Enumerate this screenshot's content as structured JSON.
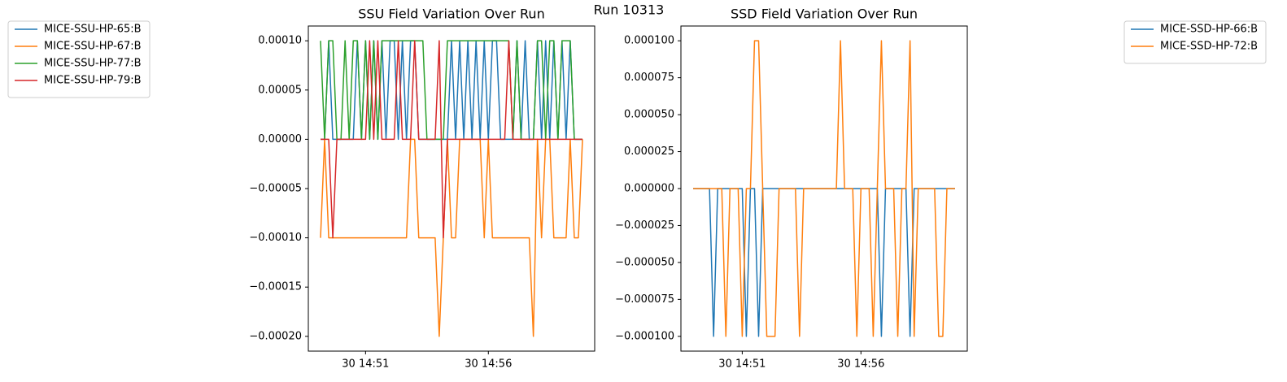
{
  "title": "Run 10313",
  "chart_data": [
    {
      "type": "line",
      "title": "SSU Field Variation Over Run",
      "legend": "outside left",
      "grid": false,
      "categories": [
        null,
        null,
        null,
        null,
        null,
        null,
        null,
        null,
        null,
        null,
        null,
        "30 14:51",
        null,
        null,
        null,
        null,
        null,
        null,
        null,
        null,
        null,
        null,
        null,
        null,
        null,
        null,
        null,
        null,
        null,
        null,
        null,
        null,
        null,
        null,
        null,
        null,
        null,
        null,
        null,
        null,
        null,
        "30 14:56",
        null,
        null,
        null,
        null,
        null,
        null,
        null,
        null,
        null,
        null,
        null,
        null,
        null,
        null,
        null,
        null,
        null,
        null,
        null,
        null,
        null,
        null,
        null
      ],
      "ylim": [
        -0.000215,
        0.000115
      ],
      "yticks": [
        {
          "value": -0.0002,
          "label": "−0.00020"
        },
        {
          "value": -0.00015,
          "label": "−0.00015"
        },
        {
          "value": -0.0001,
          "label": "−0.00010"
        },
        {
          "value": -5e-05,
          "label": "−0.00005"
        },
        {
          "value": 0,
          "label": "0.00000"
        },
        {
          "value": 5e-05,
          "label": "0.00005"
        },
        {
          "value": 0.0001,
          "label": "0.00010"
        }
      ],
      "series": [
        {
          "name": "MICE-SSU-HP-65:B",
          "color": "#1f77b4",
          "values": [
            0,
            0,
            0.0001,
            0,
            0,
            0,
            0,
            0,
            0,
            0.0001,
            0,
            0.0001,
            0,
            0.0001,
            0,
            0.0001,
            0,
            0.0001,
            0.0001,
            0,
            0.0001,
            0,
            0.0001,
            0.0001,
            0,
            0,
            0,
            0,
            0,
            0,
            0,
            0,
            0.0001,
            0,
            0.0001,
            0,
            0.0001,
            0,
            0.0001,
            0,
            0.0001,
            0,
            0.0001,
            0.0001,
            0,
            0,
            0,
            0,
            0.0001,
            0,
            0.0001,
            0,
            0,
            0.0001,
            0,
            0.0001,
            0,
            0.0001,
            0,
            0.0001,
            0,
            0.0001,
            0,
            0,
            0
          ]
        },
        {
          "name": "MICE-SSU-HP-67:B",
          "color": "#ff7f0e",
          "values": [
            -0.0001,
            0,
            -0.0001,
            -0.0001,
            -0.0001,
            -0.0001,
            -0.0001,
            -0.0001,
            -0.0001,
            -0.0001,
            -0.0001,
            -0.0001,
            -0.0001,
            -0.0001,
            -0.0001,
            -0.0001,
            -0.0001,
            -0.0001,
            -0.0001,
            -0.0001,
            -0.0001,
            -0.0001,
            0,
            0,
            -0.0001,
            -0.0001,
            -0.0001,
            -0.0001,
            -0.0001,
            -0.0002,
            -0.0001,
            0,
            -0.0001,
            -0.0001,
            0,
            0,
            0,
            0,
            0,
            0,
            -0.0001,
            0,
            -0.0001,
            -0.0001,
            -0.0001,
            -0.0001,
            -0.0001,
            -0.0001,
            -0.0001,
            -0.0001,
            -0.0001,
            -0.0001,
            -0.0002,
            0,
            -0.0001,
            0,
            0,
            -0.0001,
            -0.0001,
            -0.0001,
            -0.0001,
            0,
            -0.0001,
            -0.0001,
            0
          ]
        },
        {
          "name": "MICE-SSU-HP-77:B",
          "color": "#2ca02c",
          "values": [
            0.0001,
            0,
            0.0001,
            0.0001,
            0,
            0,
            0.0001,
            0,
            0.0001,
            0.0001,
            0,
            0.0001,
            0,
            0.0001,
            0,
            0.0001,
            0.0001,
            0.0001,
            0.0001,
            0.0001,
            0.0001,
            0.0001,
            0.0001,
            0.0001,
            0.0001,
            0.0001,
            0,
            0,
            0,
            0,
            0,
            0.0001,
            0.0001,
            0.0001,
            0.0001,
            0.0001,
            0.0001,
            0.0001,
            0.0001,
            0.0001,
            0.0001,
            0.0001,
            0.0001,
            0.0001,
            0.0001,
            0.0001,
            0.0001,
            0,
            0.0001,
            0,
            0,
            0,
            0,
            0.0001,
            0.0001,
            0,
            0.0001,
            0.0001,
            0,
            0.0001,
            0.0001,
            0.0001,
            0,
            0,
            0
          ]
        },
        {
          "name": "MICE-SSU-HP-79:B",
          "color": "#d62728",
          "values": [
            0,
            0,
            0,
            -0.0001,
            0,
            0,
            0,
            0,
            0,
            0,
            0,
            0,
            0.0001,
            0,
            0.0001,
            0,
            0,
            0,
            0,
            0.0001,
            0,
            0,
            0,
            0.0001,
            0,
            0,
            0,
            0,
            0,
            0.0001,
            -0.0001,
            0,
            0,
            0,
            0,
            0,
            0,
            0,
            0,
            0,
            0,
            0,
            0,
            0,
            0,
            0,
            0.0001,
            0,
            0,
            0,
            0,
            0,
            0,
            0,
            0,
            0,
            0,
            0,
            0,
            0,
            0,
            0,
            0,
            0,
            0
          ]
        }
      ]
    },
    {
      "type": "line",
      "title": "SSD Field Variation Over Run",
      "legend": "outside right",
      "grid": false,
      "categories": [
        null,
        null,
        null,
        null,
        null,
        null,
        null,
        null,
        null,
        null,
        null,
        null,
        "30 14:51",
        null,
        null,
        null,
        null,
        null,
        null,
        null,
        null,
        null,
        null,
        null,
        null,
        null,
        null,
        null,
        null,
        null,
        null,
        null,
        null,
        null,
        null,
        null,
        null,
        null,
        null,
        null,
        null,
        "30 14:56",
        null,
        null,
        null,
        null,
        null,
        null,
        null,
        null,
        null,
        null,
        null,
        null,
        null,
        null,
        null,
        null,
        null,
        null,
        null,
        null,
        null,
        null,
        null
      ],
      "ylim": [
        -0.00011,
        0.00011
      ],
      "yticks": [
        {
          "value": -0.0001,
          "label": "−0.000100"
        },
        {
          "value": -7.5e-05,
          "label": "−0.000075"
        },
        {
          "value": -5e-05,
          "label": "−0.000050"
        },
        {
          "value": -2.5e-05,
          "label": "−0.000025"
        },
        {
          "value": 0,
          "label": "0.000000"
        },
        {
          "value": 2.5e-05,
          "label": "0.000025"
        },
        {
          "value": 5e-05,
          "label": "0.000050"
        },
        {
          "value": 7.5e-05,
          "label": "0.000075"
        },
        {
          "value": 0.0001,
          "label": "0.000100"
        }
      ],
      "series": [
        {
          "name": "MICE-SSD-HP-66:B",
          "color": "#1f77b4",
          "values": [
            0,
            0,
            0,
            0,
            0,
            -0.0001,
            0,
            0,
            0,
            0,
            0,
            0,
            0,
            -0.0001,
            0,
            0,
            -0.0001,
            0,
            0,
            0,
            0,
            0,
            0,
            0,
            0,
            0,
            0,
            0,
            0,
            0,
            0,
            0,
            0,
            0,
            0,
            0,
            0,
            0,
            0,
            0,
            0,
            0,
            0,
            0,
            0,
            0,
            -0.0001,
            0,
            0,
            0,
            0,
            0,
            0,
            -0.0001,
            0,
            0,
            0,
            0,
            0,
            0,
            0,
            0,
            0,
            0,
            0
          ]
        },
        {
          "name": "MICE-SSD-HP-72:B",
          "color": "#ff7f0e",
          "values": [
            0,
            0,
            0,
            0,
            0,
            0,
            0,
            0,
            -0.0001,
            0,
            0,
            0,
            -0.0001,
            0,
            0,
            0.0001,
            0.0001,
            0,
            -0.0001,
            -0.0001,
            -0.0001,
            0,
            0,
            0,
            0,
            0,
            -0.0001,
            0,
            0,
            0,
            0,
            0,
            0,
            0,
            0,
            0,
            0.0001,
            0,
            0,
            0,
            -0.0001,
            0,
            0,
            0,
            -0.0001,
            0,
            0.0001,
            0,
            0,
            0,
            -0.0001,
            0,
            0,
            0.0001,
            -0.0001,
            0,
            0,
            0,
            0,
            0,
            -0.0001,
            -0.0001,
            0,
            0,
            0
          ]
        }
      ]
    }
  ]
}
